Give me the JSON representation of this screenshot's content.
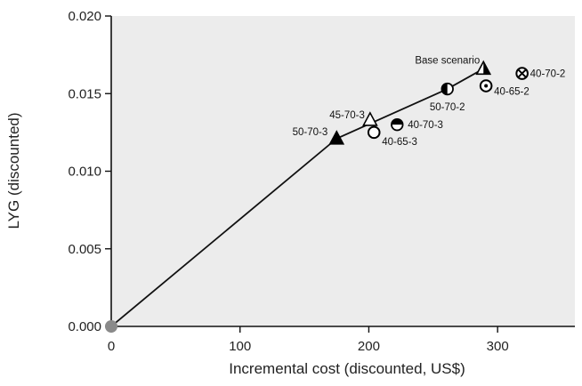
{
  "chart_data": {
    "type": "scatter",
    "xlabel": "Incremental cost (discounted, US$)",
    "ylabel": "LYG (discounted)",
    "xlim": [
      0,
      360
    ],
    "ylim": [
      0,
      0.02
    ],
    "x_ticks": [
      0,
      100,
      200,
      300
    ],
    "x_tick_labels": [
      "0",
      "100",
      "200",
      "300"
    ],
    "y_ticks": [
      0,
      0.005,
      0.01,
      0.015,
      0.02
    ],
    "y_tick_labels": [
      "0.000",
      "0.005",
      "0.010",
      "0.015",
      "0.020"
    ],
    "grid": false,
    "plot_background": "#ececec",
    "frontier_line": [
      {
        "x": 0,
        "y": 0
      },
      {
        "x": 175,
        "y": 0.0121
      },
      {
        "x": 261,
        "y": 0.0153
      },
      {
        "x": 289,
        "y": 0.0166
      }
    ],
    "points": [
      {
        "label": "",
        "x": 0,
        "y": 0,
        "marker": "circle-gray"
      },
      {
        "label": "50-70-3",
        "x": 175,
        "y": 0.0121,
        "marker": "triangle-filled"
      },
      {
        "label": "45-70-3",
        "x": 201,
        "y": 0.0133,
        "marker": "triangle-open"
      },
      {
        "label": "40-65-3",
        "x": 204,
        "y": 0.0125,
        "marker": "circle-open"
      },
      {
        "label": "40-70-3",
        "x": 222,
        "y": 0.013,
        "marker": "circle-top-half"
      },
      {
        "label": "50-70-2",
        "x": 261,
        "y": 0.0153,
        "marker": "circle-left-half"
      },
      {
        "label": "Base scenario",
        "x": 289,
        "y": 0.0166,
        "marker": "triangle-half"
      },
      {
        "label": "40-65-2",
        "x": 291,
        "y": 0.0155,
        "marker": "circle-dot"
      },
      {
        "label": "40-70-2",
        "x": 319,
        "y": 0.0163,
        "marker": "circle-cross"
      }
    ]
  }
}
